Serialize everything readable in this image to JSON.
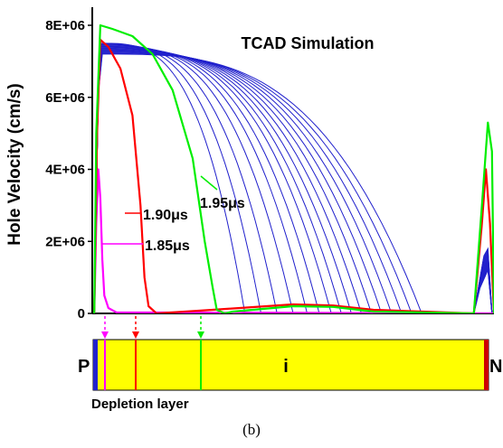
{
  "figure": {
    "caption": "(b)"
  },
  "chart_data": {
    "type": "line",
    "title": "TCAD Simulation",
    "ylabel": "Hole Velocity (cm/s)",
    "xlabel": "",
    "xlim": [
      0,
      1
    ],
    "ylim": [
      0,
      8000000
    ],
    "yticks": [
      {
        "value": 0,
        "label": "0"
      },
      {
        "value": 2000000,
        "label": "2E+06"
      },
      {
        "value": 4000000,
        "label": "4E+06"
      },
      {
        "value": 6000000,
        "label": "6E+06"
      },
      {
        "value": 8000000,
        "label": "8E+06"
      }
    ],
    "series": [
      {
        "name": "1.85μs",
        "color": "#ff00ff",
        "x": [
          0.005,
          0.01,
          0.015,
          0.02,
          0.025,
          0.03,
          0.04,
          0.06,
          1.0
        ],
        "y": [
          0,
          2500000,
          4000000,
          3200000,
          1500000,
          500000,
          150000,
          30000,
          0
        ]
      },
      {
        "name": "1.90μs",
        "color": "#ff0000",
        "x": [
          0.005,
          0.012,
          0.02,
          0.04,
          0.07,
          0.1,
          0.12,
          0.13,
          0.14,
          0.16,
          0.3,
          0.5,
          0.6,
          0.7,
          0.95,
          0.97,
          0.98,
          0.99,
          1.0
        ],
        "y": [
          0,
          5000000,
          7600000,
          7400000,
          6800000,
          5500000,
          3000000,
          1000000,
          200000,
          0,
          100000,
          250000,
          220000,
          100000,
          0,
          2500000,
          4000000,
          2500000,
          0
        ]
      },
      {
        "name": "1.95μs",
        "color": "#00ee00",
        "x": [
          0.005,
          0.01,
          0.02,
          0.05,
          0.1,
          0.15,
          0.2,
          0.25,
          0.28,
          0.3,
          0.31,
          0.33,
          0.35,
          0.5,
          0.6,
          0.7,
          0.95,
          0.97,
          0.985,
          0.995,
          1.0
        ],
        "y": [
          0,
          5000000,
          8000000,
          7900000,
          7700000,
          7200000,
          6200000,
          4300000,
          2000000,
          700000,
          100000,
          0,
          50000,
          200000,
          180000,
          50000,
          0,
          3000000,
          5300000,
          4500000,
          0
        ]
      }
    ],
    "blue_series": {
      "color": "#2020cc",
      "count": 16,
      "note": "successive time steps",
      "velocity_drop_x": [
        0.38,
        0.42,
        0.46,
        0.5,
        0.535,
        0.565,
        0.595,
        0.62,
        0.645,
        0.67,
        0.695,
        0.72,
        0.745,
        0.77,
        0.795,
        0.82
      ],
      "peak_y": 7500000
    },
    "annotations": [
      {
        "text": "1.85μs",
        "color": "#ff00ff"
      },
      {
        "text": "1.90μs",
        "color": "#ff0000"
      },
      {
        "text": "1.95μs",
        "color": "#00ee00"
      }
    ]
  },
  "device": {
    "labels": {
      "p": "P",
      "i": "i",
      "n": "N"
    },
    "depletion_label": "Depletion layer",
    "fill_color": "#ffff00",
    "p_color": "#2020cc",
    "n_color": "#cc0000",
    "markers": [
      {
        "name": "1.85μs",
        "color": "#ff00ff"
      },
      {
        "name": "1.90μs",
        "color": "#ff0000"
      },
      {
        "name": "1.95μs",
        "color": "#00ee00"
      }
    ]
  }
}
